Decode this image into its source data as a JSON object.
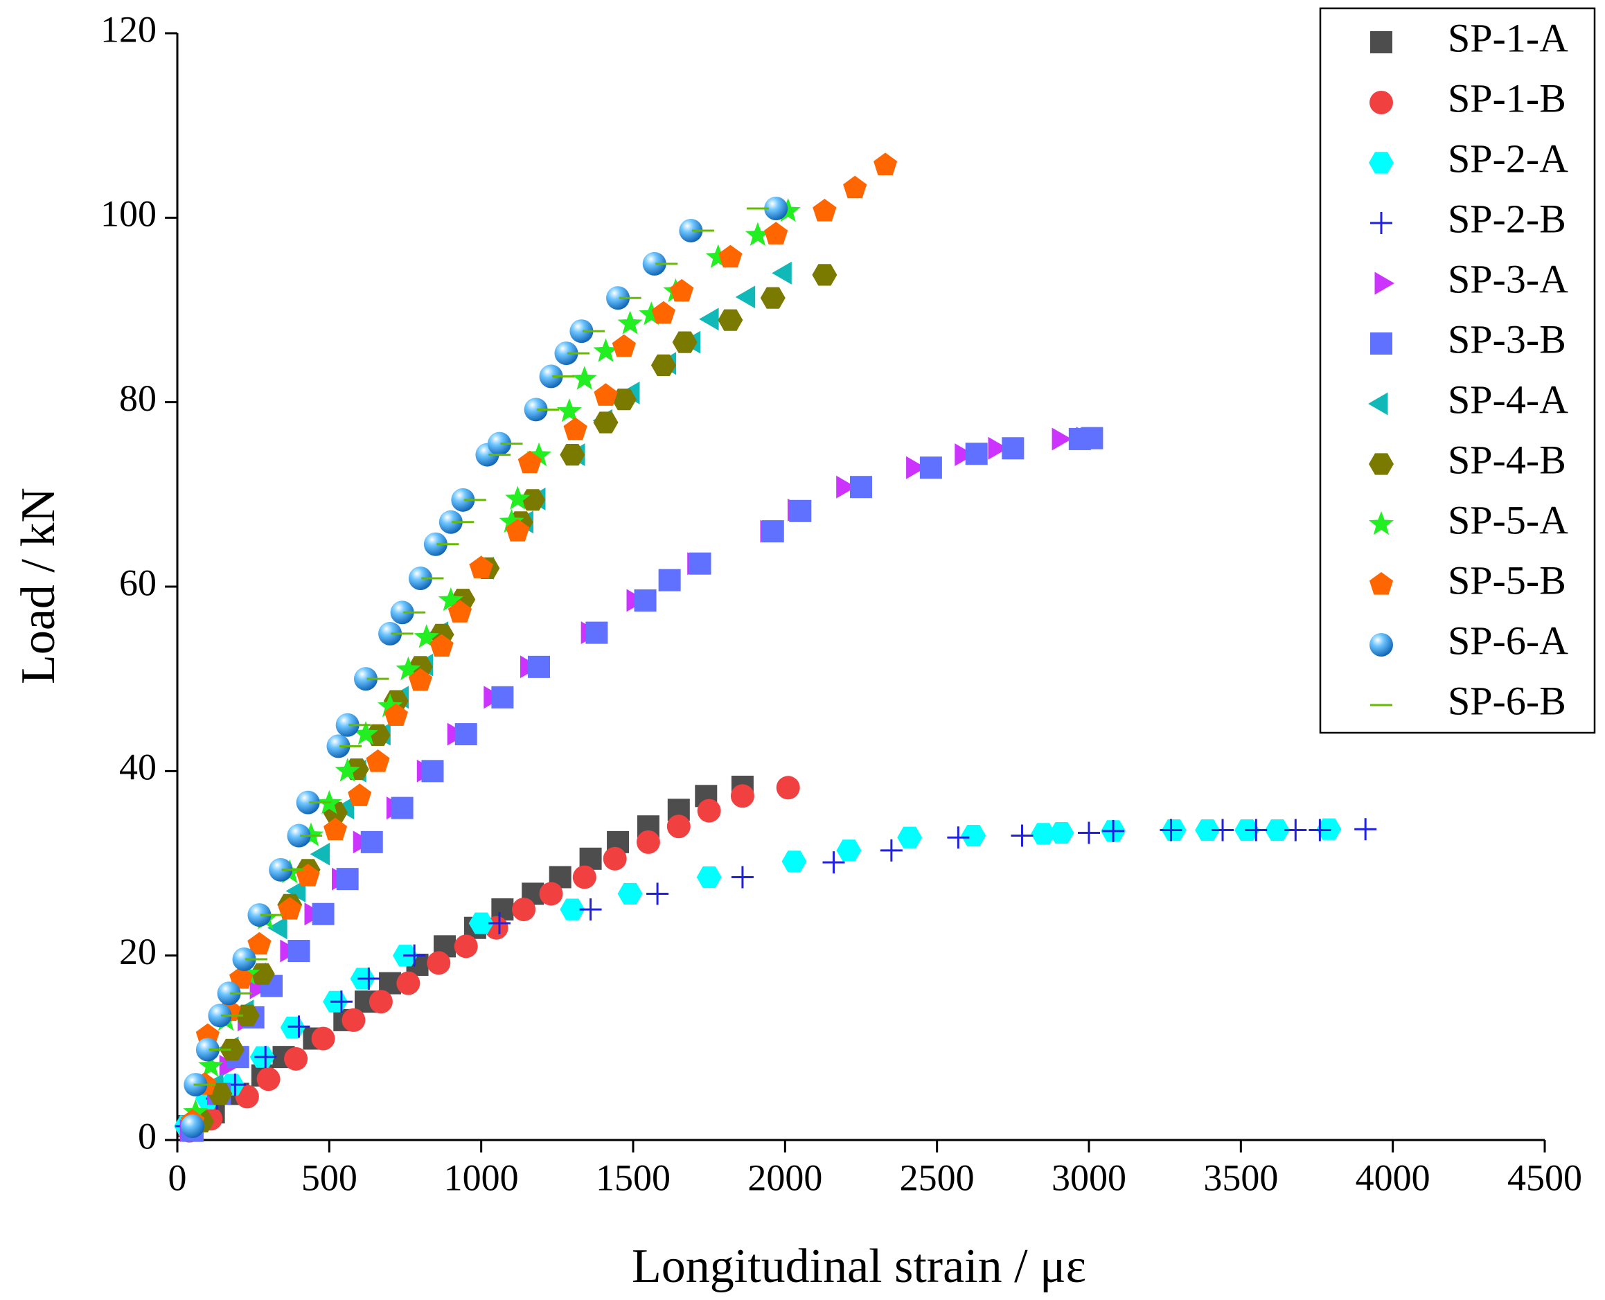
{
  "chart_data": {
    "type": "scatter",
    "x_label": "Longitudinal strain / με",
    "y_label": "Load / kN",
    "xlim": [
      0,
      4500
    ],
    "ylim": [
      0,
      120
    ],
    "xticks": [
      0,
      500,
      1000,
      1500,
      2000,
      2500,
      3000,
      3500,
      4000,
      4500
    ],
    "yticks": [
      0,
      20,
      40,
      60,
      80,
      100,
      120
    ],
    "legend": "upper right",
    "series": [
      {
        "name": "SP-1-A",
        "color": "#4d4d4d",
        "marker": "square",
        "x": [
          40,
          120,
          200,
          280,
          350,
          450,
          550,
          620,
          700,
          790,
          880,
          980,
          1070,
          1170,
          1260,
          1360,
          1450,
          1550,
          1650,
          1740,
          1860
        ],
        "values": [
          1.5,
          3,
          5,
          7,
          9,
          11,
          13,
          15,
          17,
          19,
          21,
          23,
          25,
          26.7,
          28.5,
          30.5,
          32.3,
          34,
          35.8,
          37.3,
          38.3
        ]
      },
      {
        "name": "SP-1-B",
        "color": "#f04040",
        "marker": "circle",
        "x": [
          40,
          110,
          230,
          300,
          390,
          480,
          580,
          670,
          760,
          860,
          950,
          1050,
          1140,
          1230,
          1340,
          1440,
          1550,
          1650,
          1750,
          1860,
          2010
        ],
        "values": [
          1,
          2.3,
          4.7,
          6.6,
          8.8,
          11,
          13,
          15,
          17,
          19.2,
          21,
          23,
          25,
          26.7,
          28.5,
          30.5,
          32.3,
          34,
          35.7,
          37.3,
          38.2
        ]
      },
      {
        "name": "SP-2-A",
        "color": "#00ffff",
        "marker": "hexagon",
        "x": [
          30,
          100,
          180,
          280,
          380,
          520,
          610,
          750,
          1000,
          1300,
          1490,
          1750,
          2030,
          2210,
          2410,
          2620,
          2850,
          2910,
          3080,
          3280,
          3390,
          3520,
          3620,
          3790
        ],
        "values": [
          1.5,
          4.5,
          6,
          9,
          12.2,
          15,
          17.5,
          20,
          23.5,
          25,
          26.7,
          28.5,
          30.2,
          31.4,
          32.8,
          33,
          33.2,
          33.3,
          33.5,
          33.6,
          33.6,
          33.6,
          33.6,
          33.7
        ]
      },
      {
        "name": "SP-2-B",
        "color": "#2020e0",
        "marker": "plus",
        "x": [
          30,
          130,
          190,
          290,
          400,
          540,
          630,
          780,
          1060,
          1360,
          1580,
          1860,
          2160,
          2350,
          2570,
          2780,
          3000,
          3080,
          3270,
          3440,
          3550,
          3680,
          3760,
          3910
        ],
        "values": [
          1.5,
          4.5,
          6,
          9,
          12.3,
          15,
          17.5,
          20,
          23.5,
          25,
          26.7,
          28.5,
          30.1,
          31.4,
          32.8,
          33,
          33.3,
          33.5,
          33.6,
          33.6,
          33.6,
          33.6,
          33.6,
          33.7
        ]
      },
      {
        "name": "SP-3-A",
        "color": "#cc33ff",
        "marker": "triangle-right",
        "x": [
          30,
          120,
          160,
          220,
          260,
          360,
          440,
          530,
          600,
          710,
          810,
          910,
          1030,
          1150,
          1350,
          1500,
          1610,
          1700,
          1940,
          2030,
          2190,
          2420,
          2580,
          2690,
          2900,
          2980
        ],
        "values": [
          1,
          5,
          8,
          13,
          16.5,
          20.5,
          24.5,
          28.3,
          32.3,
          36,
          40,
          44,
          48,
          51.3,
          55,
          58.5,
          60.7,
          62.5,
          66,
          68.3,
          70.8,
          72.9,
          74.3,
          75,
          76,
          76.1
        ]
      },
      {
        "name": "SP-3-B",
        "color": "#6070ff",
        "marker": "square",
        "x": [
          50,
          140,
          200,
          250,
          310,
          400,
          480,
          560,
          640,
          740,
          840,
          950,
          1070,
          1190,
          1380,
          1540,
          1620,
          1720,
          1960,
          2050,
          2250,
          2480,
          2630,
          2750,
          2970,
          3010
        ],
        "values": [
          1,
          5,
          9,
          13.3,
          16.7,
          20.5,
          24.5,
          28.3,
          32.3,
          36,
          40,
          44,
          48,
          51.3,
          55,
          58.5,
          60.7,
          62.5,
          66,
          68.2,
          70.8,
          72.9,
          74.4,
          75,
          76,
          76.1
        ]
      },
      {
        "name": "SP-4-A",
        "color": "#10b8b8",
        "marker": "triangle-left",
        "x": [
          60,
          130,
          180,
          230,
          270,
          340,
          400,
          480,
          560,
          600,
          680,
          740,
          820,
          870,
          940,
          1020,
          1150,
          1190,
          1320,
          1410,
          1500,
          1620,
          1700,
          1760,
          1880,
          2000
        ],
        "values": [
          2,
          6,
          10,
          14,
          18,
          23,
          27,
          31,
          36,
          40,
          44,
          48,
          51.5,
          55,
          58.5,
          62,
          67,
          69.5,
          74.3,
          78,
          81,
          84.2,
          86.5,
          89,
          91.4,
          94
        ]
      },
      {
        "name": "SP-4-B",
        "color": "#7a7a00",
        "marker": "hexagon",
        "x": [
          80,
          140,
          180,
          230,
          280,
          370,
          430,
          520,
          590,
          660,
          720,
          800,
          870,
          940,
          1020,
          1130,
          1170,
          1300,
          1410,
          1470,
          1600,
          1670,
          1820,
          1960,
          2130
        ],
        "values": [
          2,
          5,
          9.8,
          13.5,
          18,
          25.5,
          29.3,
          35.5,
          40.2,
          43.9,
          47.6,
          51.3,
          54.8,
          58.6,
          62,
          67,
          69.4,
          74.3,
          77.8,
          80.3,
          84,
          86.5,
          88.9,
          91.3,
          93.8
        ]
      },
      {
        "name": "SP-5-A",
        "color": "#22ee22",
        "marker": "star",
        "x": [
          60,
          110,
          160,
          230,
          290,
          370,
          440,
          500,
          560,
          620,
          700,
          760,
          820,
          900,
          1000,
          1100,
          1120,
          1190,
          1290,
          1340,
          1410,
          1490,
          1560,
          1640,
          1780,
          1910,
          2010
        ],
        "values": [
          3,
          8,
          13,
          18,
          24,
          29,
          33,
          36.5,
          40,
          44,
          47,
          51,
          54.5,
          58.5,
          62,
          67,
          69.5,
          74.2,
          79,
          82.5,
          85.5,
          88.5,
          89.5,
          92,
          95.7,
          98.1,
          100.7
        ]
      },
      {
        "name": "SP-5-B",
        "color": "#ff6600",
        "marker": "pentagon",
        "x": [
          50,
          90,
          100,
          170,
          210,
          270,
          370,
          430,
          520,
          600,
          660,
          720,
          800,
          870,
          930,
          1000,
          1120,
          1160,
          1310,
          1410,
          1470,
          1600,
          1660,
          1820,
          1970,
          2130,
          2230,
          2330
        ],
        "values": [
          2,
          6,
          11.3,
          14,
          17.5,
          21.2,
          25,
          28.6,
          33.6,
          37.3,
          41,
          46,
          49.8,
          53.5,
          57.2,
          62,
          66,
          73.4,
          77,
          80.7,
          86,
          89.6,
          92,
          95.7,
          98.2,
          100.7,
          103.2,
          105.7
        ]
      },
      {
        "name": "SP-6-A",
        "color": "#1e90ff",
        "marker": "sphere",
        "x": [
          50,
          60,
          100,
          140,
          170,
          220,
          270,
          340,
          400,
          430,
          530,
          560,
          620,
          700,
          740,
          800,
          850,
          900,
          940,
          1020,
          1060,
          1180,
          1230,
          1280,
          1330,
          1450,
          1570,
          1690,
          1970
        ],
        "values": [
          1.5,
          6,
          9.8,
          13.5,
          15.9,
          19.6,
          24.4,
          29.3,
          33,
          36.6,
          42.7,
          45,
          50,
          54.9,
          57.2,
          60.9,
          64.6,
          67,
          69.4,
          74.3,
          75.5,
          79.2,
          82.8,
          85.3,
          87.7,
          91.3,
          95,
          98.6,
          101
        ]
      },
      {
        "name": "SP-6-B",
        "color": "#66bb00",
        "marker": "dash",
        "x": [
          90,
          140,
          180,
          210,
          260,
          310,
          380,
          440,
          470,
          570,
          600,
          660,
          740,
          780,
          840,
          890,
          940,
          980,
          1060,
          1100,
          1220,
          1270,
          1320,
          1370,
          1490,
          1610,
          1730,
          1910
        ],
        "values": [
          6,
          9.8,
          13.5,
          15.9,
          19.6,
          24.4,
          29.3,
          33,
          36.6,
          42.7,
          45,
          50,
          54.9,
          57.2,
          60.9,
          64.6,
          67,
          69.4,
          74.3,
          75.5,
          79.2,
          82.8,
          85.3,
          87.7,
          91.3,
          95,
          98.6,
          101
        ]
      }
    ]
  }
}
